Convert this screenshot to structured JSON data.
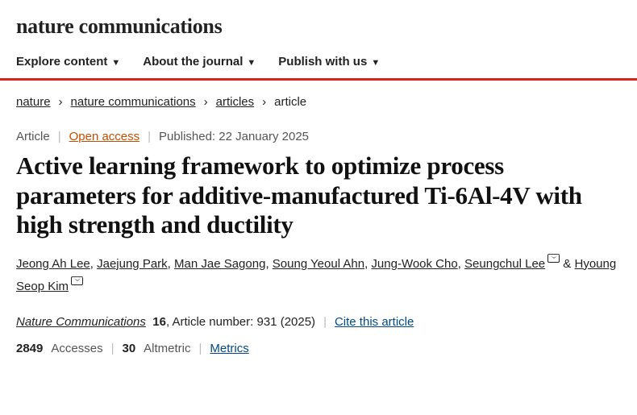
{
  "brand": "nature communications",
  "nav": {
    "explore": "Explore content",
    "about": "About the journal",
    "publish": "Publish with us"
  },
  "breadcrumbs": {
    "items": [
      "nature",
      "nature communications",
      "articles"
    ],
    "current": "article"
  },
  "meta": {
    "type": "Article",
    "open_access": "Open access",
    "published": "Published: 22 January 2025"
  },
  "title": "Active learning framework to optimize process parameters for additive-manufactured Ti-6Al-4V with high strength and ductility",
  "authors": [
    {
      "name": "Jeong Ah Lee",
      "mail": false
    },
    {
      "name": "Jaejung Park",
      "mail": false
    },
    {
      "name": "Man Jae Sagong",
      "mail": false
    },
    {
      "name": "Soung Yeoul Ahn",
      "mail": false
    },
    {
      "name": "Jung-Wook Cho",
      "mail": false
    },
    {
      "name": "Seungchul Lee",
      "mail": true
    },
    {
      "name": "Hyoung Seop Kim",
      "mail": true
    }
  ],
  "journal": {
    "name": "Nature Communications",
    "volume": "16",
    "artnum_label": ", Article number:",
    "artnum": "931 (2025)",
    "cite": "Cite this article"
  },
  "metrics": {
    "accesses_n": "2849",
    "accesses_l": "Accesses",
    "alt_n": "30",
    "alt_l": "Altmetric",
    "metrics": "Metrics"
  },
  "colors": {
    "accent_red": "#d9261c",
    "open_access": "#c24d00",
    "link_blue": "#004b83"
  }
}
